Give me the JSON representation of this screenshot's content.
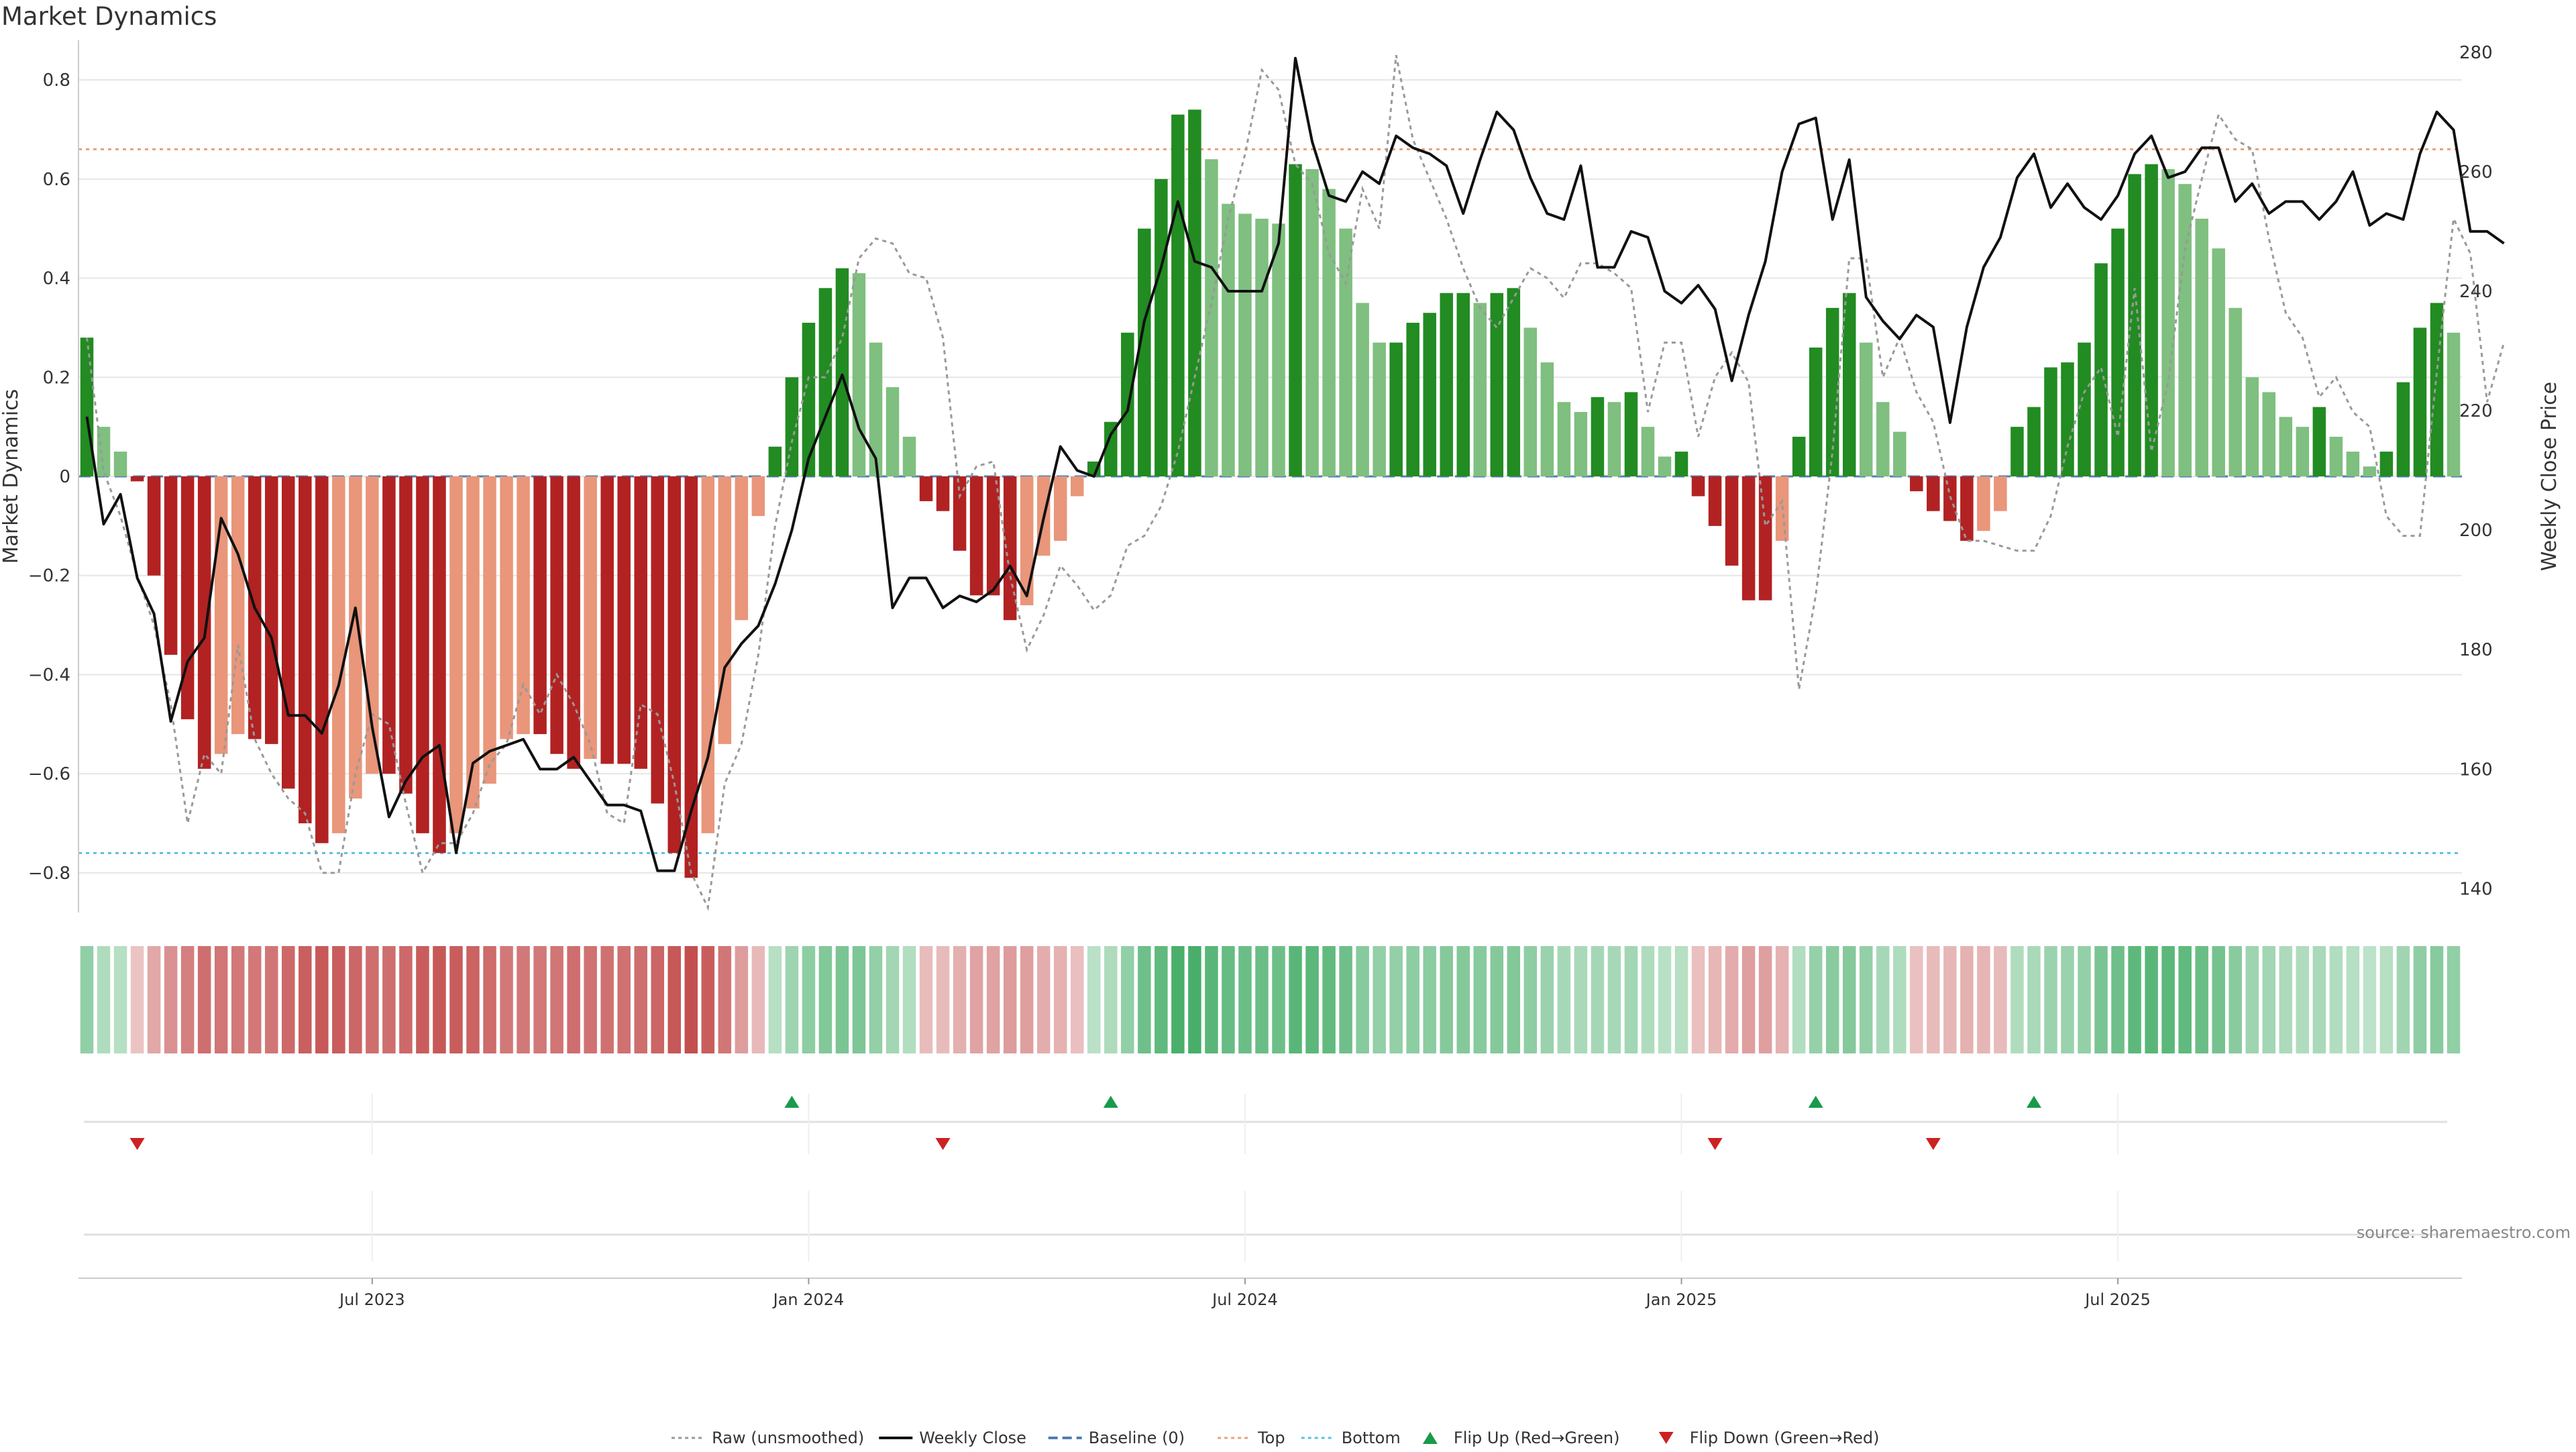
{
  "title": "Market Dynamics",
  "source": "source: sharemaestro.com",
  "colors": {
    "strong_green": "#228b22",
    "light_green": "#7fbf7f",
    "strong_red": "#b22222",
    "light_red": "#e9967a",
    "close_line": "#111111",
    "raw_line": "#999999",
    "baseline": "#4f7fb0",
    "top_line": "#e9a27a",
    "bottom_line": "#5bc0de",
    "flip_up": "#1a9a4a",
    "flip_down": "#cc2222",
    "grid": "#e6e6e6"
  },
  "legend": [
    {
      "label": "Raw (unsmoothed)",
      "kind": "dotted-line",
      "color": "#999999"
    },
    {
      "label": "Weekly Close",
      "kind": "solid-line",
      "color": "#111111"
    },
    {
      "label": "Baseline (0)",
      "kind": "dashed-line",
      "color": "#4f7fb0"
    },
    {
      "label": "Top",
      "kind": "dotted-line",
      "color": "#e9a27a"
    },
    {
      "label": "Bottom",
      "kind": "dotted-line",
      "color": "#5bc0de"
    },
    {
      "label": "Flip Up (Red→Green)",
      "kind": "triangle-up",
      "color": "#1a9a4a"
    },
    {
      "label": "Flip Down (Green→Red)",
      "kind": "triangle-down",
      "color": "#cc2222"
    }
  ],
  "chart_data": {
    "type": "bar",
    "left_axis": {
      "label": "Market Dynamics",
      "ticks": [
        -0.8,
        -0.6,
        -0.4,
        -0.2,
        0,
        0.2,
        0.4,
        0.6,
        0.8
      ],
      "tick_labels": [
        "−0.8",
        "−0.6",
        "−0.4",
        "−0.2",
        "0",
        "0.2",
        "0.4",
        "0.6",
        "0.8"
      ],
      "range": [
        -0.88,
        0.88
      ]
    },
    "right_axis": {
      "label": "Weekly Close Price",
      "ticks": [
        140,
        160,
        180,
        200,
        220,
        240,
        260,
        280
      ],
      "range": [
        136,
        282
      ]
    },
    "x_ticks": [
      {
        "label": "Jul 2023",
        "week": 17
      },
      {
        "label": "Jan 2024",
        "week": 43
      },
      {
        "label": "Jul 2024",
        "week": 69
      },
      {
        "label": "Jan 2025",
        "week": 95
      },
      {
        "label": "Jul 2025",
        "week": 121
      }
    ],
    "levels": {
      "top": 0.66,
      "bottom": -0.76,
      "baseline": 0
    },
    "grid": true,
    "legend_position": "bottom-center",
    "series": [
      {
        "name": "Market Dynamics",
        "values": [
          0.28,
          0.1,
          0.05,
          -0.01,
          -0.2,
          -0.36,
          -0.49,
          -0.59,
          -0.56,
          -0.52,
          -0.53,
          -0.54,
          -0.63,
          -0.7,
          -0.74,
          -0.72,
          -0.65,
          -0.6,
          -0.6,
          -0.64,
          -0.72,
          -0.76,
          -0.72,
          -0.67,
          -0.62,
          -0.53,
          -0.52,
          -0.52,
          -0.56,
          -0.59,
          -0.57,
          -0.58,
          -0.58,
          -0.59,
          -0.66,
          -0.76,
          -0.81,
          -0.72,
          -0.54,
          -0.29,
          -0.08,
          0.06,
          0.2,
          0.31,
          0.38,
          0.42,
          0.41,
          0.27,
          0.18,
          0.08,
          -0.05,
          -0.07,
          -0.15,
          -0.24,
          -0.24,
          -0.29,
          -0.26,
          -0.16,
          -0.13,
          -0.04,
          0.03,
          0.11,
          0.29,
          0.5,
          0.6,
          0.73,
          0.74,
          0.64,
          0.55,
          0.53,
          0.52,
          0.51,
          0.63,
          0.62,
          0.58,
          0.5,
          0.35,
          0.27,
          0.27,
          0.31,
          0.33,
          0.37,
          0.37,
          0.35,
          0.37,
          0.38,
          0.3,
          0.23,
          0.15,
          0.13,
          0.16,
          0.15,
          0.17,
          0.1,
          0.04,
          0.05,
          -0.04,
          -0.1,
          -0.18,
          -0.25,
          -0.25,
          -0.13,
          0.08,
          0.26,
          0.34,
          0.37,
          0.27,
          0.15,
          0.09,
          -0.03,
          -0.07,
          -0.09,
          -0.13,
          -0.11,
          -0.07,
          0.1,
          0.14,
          0.22,
          0.23,
          0.27,
          0.43,
          0.5,
          0.61,
          0.63,
          0.62,
          0.59,
          0.52,
          0.46,
          0.34,
          0.2,
          0.17,
          0.12,
          0.1,
          0.14,
          0.08,
          0.05,
          0.02,
          0.05,
          0.19,
          0.3,
          0.35,
          0.29
        ]
      },
      {
        "name": "Raw (unsmoothed)",
        "values": [
          0.28,
          0.01,
          -0.08,
          -0.2,
          -0.3,
          -0.46,
          -0.7,
          -0.56,
          -0.6,
          -0.34,
          -0.53,
          -0.6,
          -0.65,
          -0.68,
          -0.8,
          -0.8,
          -0.6,
          -0.48,
          -0.5,
          -0.66,
          -0.8,
          -0.74,
          -0.74,
          -0.68,
          -0.58,
          -0.54,
          -0.42,
          -0.48,
          -0.4,
          -0.46,
          -0.54,
          -0.68,
          -0.7,
          -0.46,
          -0.48,
          -0.62,
          -0.8,
          -0.87,
          -0.62,
          -0.54,
          -0.36,
          -0.1,
          0.07,
          0.2,
          0.2,
          0.28,
          0.44,
          0.48,
          0.47,
          0.41,
          0.4,
          0.28,
          -0.04,
          0.02,
          0.03,
          -0.2,
          -0.35,
          -0.28,
          -0.18,
          -0.22,
          -0.27,
          -0.24,
          -0.14,
          -0.12,
          -0.06,
          0.05,
          0.2,
          0.35,
          0.52,
          0.65,
          0.82,
          0.78,
          0.63,
          0.59,
          0.45,
          0.39,
          0.58,
          0.5,
          0.85,
          0.68,
          0.6,
          0.52,
          0.42,
          0.34,
          0.3,
          0.36,
          0.42,
          0.4,
          0.36,
          0.43,
          0.43,
          0.41,
          0.38,
          0.13,
          0.27,
          0.27,
          0.08,
          0.2,
          0.25,
          0.19,
          -0.1,
          -0.05,
          -0.43,
          -0.24,
          0.05,
          0.44,
          0.44,
          0.2,
          0.28,
          0.17,
          0.11,
          -0.04,
          -0.13,
          -0.13,
          -0.14,
          -0.15,
          -0.15,
          -0.08,
          0.06,
          0.17,
          0.22,
          0.08,
          0.38,
          0.05,
          0.19,
          0.46,
          0.6,
          0.73,
          0.68,
          0.66,
          0.48,
          0.33,
          0.28,
          0.16,
          0.2,
          0.13,
          0.1,
          -0.08,
          -0.12,
          -0.12,
          0.21,
          0.52,
          0.45,
          0.15,
          0.27
        ]
      },
      {
        "name": "Weekly Close",
        "values": [
          219,
          201,
          206,
          192,
          186,
          168,
          178,
          182,
          202,
          196,
          187,
          182,
          169,
          169,
          166,
          174,
          187,
          167,
          152,
          158,
          162,
          164,
          146,
          161,
          163,
          164,
          165,
          160,
          160,
          162,
          158,
          154,
          154,
          153,
          143,
          143,
          153,
          162,
          177,
          181,
          184,
          191,
          200,
          212,
          219,
          226,
          217,
          212,
          187,
          192,
          192,
          187,
          189,
          188,
          190,
          194,
          189,
          202,
          214,
          210,
          209,
          216,
          220,
          235,
          244,
          255,
          245,
          244,
          240,
          240,
          240,
          248,
          279,
          265,
          256,
          255,
          260,
          258,
          266,
          264,
          263,
          261,
          253,
          262,
          270,
          267,
          259,
          253,
          252,
          261,
          244,
          244,
          250,
          249,
          240,
          238,
          241,
          237,
          225,
          236,
          245,
          260,
          268,
          269,
          252,
          262,
          239,
          235,
          232,
          236,
          234,
          218,
          234,
          244,
          249,
          259,
          263,
          254,
          258,
          254,
          252,
          256,
          263,
          266,
          259,
          260,
          264,
          264,
          255,
          258,
          253,
          255,
          255,
          252,
          255,
          260,
          251,
          253,
          252,
          263,
          270,
          267,
          250,
          250,
          248
        ]
      }
    ],
    "flips": {
      "up": [
        {
          "week": 42
        },
        {
          "week": 61
        },
        {
          "week": 103
        },
        {
          "week": 116
        }
      ],
      "down": [
        {
          "week": 3
        },
        {
          "week": 51
        },
        {
          "week": 97
        },
        {
          "week": 110
        }
      ]
    }
  }
}
